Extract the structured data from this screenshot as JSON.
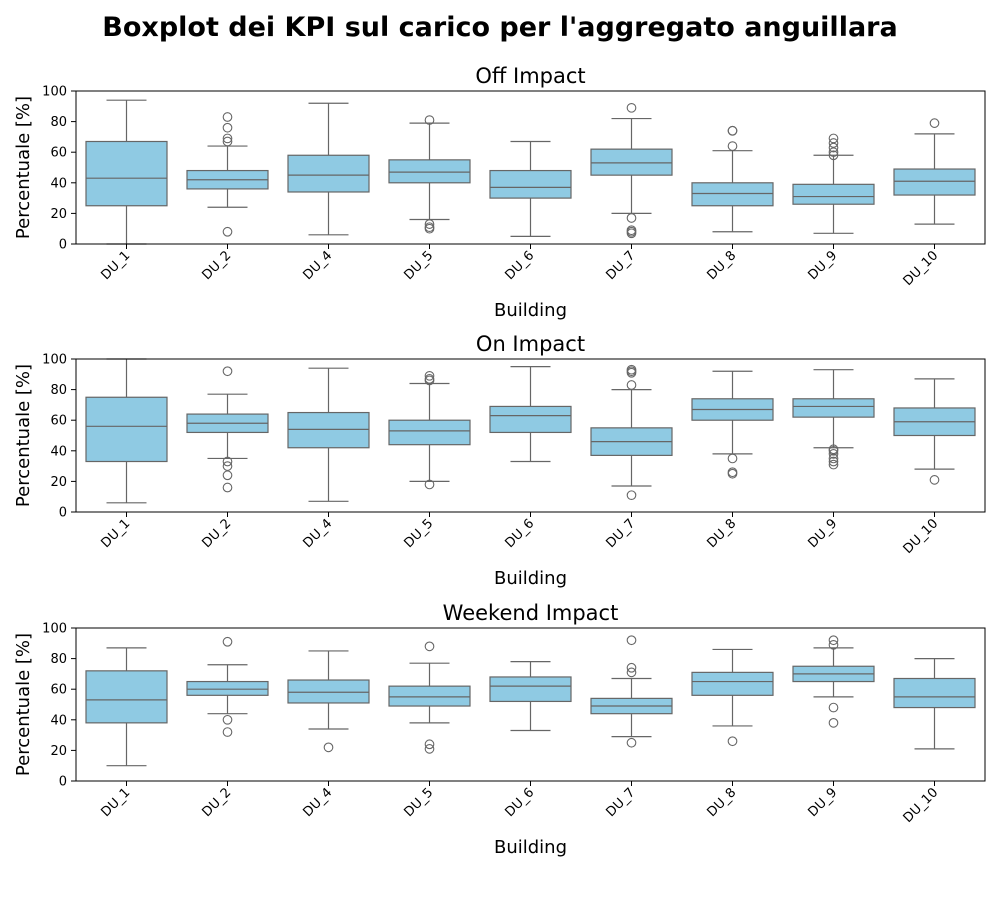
{
  "title": "Boxplot dei KPI sul carico per l'aggregato anguillara",
  "colors": {
    "box_fill": "#8fcae3",
    "box_edge": "#666666",
    "axes": "#000000"
  },
  "chart_data": [
    {
      "type": "boxplot",
      "title": "Off Impact",
      "xlabel": "Building",
      "ylabel": "Percentuale [%]",
      "ylim": [
        0,
        100
      ],
      "yticks": [
        0,
        20,
        40,
        60,
        80,
        100
      ],
      "grid": false,
      "categories": [
        "DU_1",
        "DU_2",
        "DU_4",
        "DU_5",
        "DU_6",
        "DU_7",
        "DU_8",
        "DU_9",
        "DU_10"
      ],
      "boxes": [
        {
          "whisker_low": 0,
          "q1": 25,
          "median": 43,
          "q3": 67,
          "whisker_high": 94,
          "outliers": []
        },
        {
          "whisker_low": 24,
          "q1": 36,
          "median": 42,
          "q3": 48,
          "whisker_high": 64,
          "outliers": [
            8,
            67,
            69,
            76,
            83
          ]
        },
        {
          "whisker_low": 6,
          "q1": 34,
          "median": 45,
          "q3": 58,
          "whisker_high": 92,
          "outliers": []
        },
        {
          "whisker_low": 16,
          "q1": 40,
          "median": 47,
          "q3": 55,
          "whisker_high": 79,
          "outliers": [
            10,
            11,
            13,
            81
          ]
        },
        {
          "whisker_low": 5,
          "q1": 30,
          "median": 37,
          "q3": 48,
          "whisker_high": 67,
          "outliers": []
        },
        {
          "whisker_low": 20,
          "q1": 45,
          "median": 53,
          "q3": 62,
          "whisker_high": 82,
          "outliers": [
            7,
            8,
            9,
            17,
            89
          ]
        },
        {
          "whisker_low": 8,
          "q1": 25,
          "median": 33,
          "q3": 40,
          "whisker_high": 61,
          "outliers": [
            64,
            74,
            74
          ]
        },
        {
          "whisker_low": 7,
          "q1": 26,
          "median": 31,
          "q3": 39,
          "whisker_high": 58,
          "outliers": [
            58,
            60,
            63,
            66,
            69
          ]
        },
        {
          "whisker_low": 13,
          "q1": 32,
          "median": 41,
          "q3": 49,
          "whisker_high": 72,
          "outliers": [
            79
          ]
        }
      ]
    },
    {
      "type": "boxplot",
      "title": "On Impact",
      "xlabel": "Building",
      "ylabel": "Percentuale [%]",
      "ylim": [
        0,
        100
      ],
      "yticks": [
        0,
        20,
        40,
        60,
        80,
        100
      ],
      "grid": false,
      "categories": [
        "DU_1",
        "DU_2",
        "DU_4",
        "DU_5",
        "DU_6",
        "DU_7",
        "DU_8",
        "DU_9",
        "DU_10"
      ],
      "boxes": [
        {
          "whisker_low": 6,
          "q1": 33,
          "median": 56,
          "q3": 75,
          "whisker_high": 100,
          "outliers": []
        },
        {
          "whisker_low": 35,
          "q1": 52,
          "median": 58,
          "q3": 64,
          "whisker_high": 77,
          "outliers": [
            16,
            24,
            30,
            33,
            92
          ]
        },
        {
          "whisker_low": 7,
          "q1": 42,
          "median": 54,
          "q3": 65,
          "whisker_high": 94,
          "outliers": []
        },
        {
          "whisker_low": 20,
          "q1": 44,
          "median": 53,
          "q3": 60,
          "whisker_high": 84,
          "outliers": [
            18,
            86,
            87,
            89
          ]
        },
        {
          "whisker_low": 33,
          "q1": 52,
          "median": 63,
          "q3": 69,
          "whisker_high": 95,
          "outliers": []
        },
        {
          "whisker_low": 17,
          "q1": 37,
          "median": 46,
          "q3": 55,
          "whisker_high": 80,
          "outliers": [
            11,
            83,
            91,
            92,
            93
          ]
        },
        {
          "whisker_low": 38,
          "q1": 60,
          "median": 67,
          "q3": 74,
          "whisker_high": 92,
          "outliers": [
            25,
            26,
            35
          ]
        },
        {
          "whisker_low": 42,
          "q1": 62,
          "median": 69,
          "q3": 74,
          "whisker_high": 93,
          "outliers": [
            31,
            33,
            35,
            38,
            40,
            41
          ]
        },
        {
          "whisker_low": 28,
          "q1": 50,
          "median": 59,
          "q3": 68,
          "whisker_high": 87,
          "outliers": [
            21
          ]
        }
      ]
    },
    {
      "type": "boxplot",
      "title": "Weekend Impact",
      "xlabel": "Building",
      "ylabel": "Percentuale [%]",
      "ylim": [
        0,
        100
      ],
      "yticks": [
        0,
        20,
        40,
        60,
        80,
        100
      ],
      "grid": false,
      "categories": [
        "DU_1",
        "DU_2",
        "DU_4",
        "DU_5",
        "DU_6",
        "DU_7",
        "DU_8",
        "DU_9",
        "DU_10"
      ],
      "boxes": [
        {
          "whisker_low": 10,
          "q1": 38,
          "median": 53,
          "q3": 72,
          "whisker_high": 87,
          "outliers": []
        },
        {
          "whisker_low": 44,
          "q1": 56,
          "median": 60,
          "q3": 65,
          "whisker_high": 76,
          "outliers": [
            32,
            40,
            91
          ]
        },
        {
          "whisker_low": 34,
          "q1": 51,
          "median": 58,
          "q3": 66,
          "whisker_high": 85,
          "outliers": [
            22
          ]
        },
        {
          "whisker_low": 38,
          "q1": 49,
          "median": 55,
          "q3": 62,
          "whisker_high": 77,
          "outliers": [
            21,
            24,
            88
          ]
        },
        {
          "whisker_low": 33,
          "q1": 52,
          "median": 62,
          "q3": 68,
          "whisker_high": 78,
          "outliers": []
        },
        {
          "whisker_low": 29,
          "q1": 44,
          "median": 49,
          "q3": 54,
          "whisker_high": 67,
          "outliers": [
            25,
            71,
            74,
            92
          ]
        },
        {
          "whisker_low": 36,
          "q1": 56,
          "median": 65,
          "q3": 71,
          "whisker_high": 86,
          "outliers": [
            26
          ]
        },
        {
          "whisker_low": 55,
          "q1": 65,
          "median": 70,
          "q3": 75,
          "whisker_high": 87,
          "outliers": [
            38,
            48,
            89,
            92
          ]
        },
        {
          "whisker_low": 21,
          "q1": 48,
          "median": 55,
          "q3": 67,
          "whisker_high": 80,
          "outliers": []
        }
      ]
    }
  ]
}
